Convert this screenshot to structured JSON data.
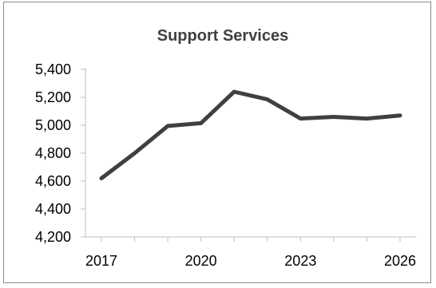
{
  "chart_data": {
    "type": "line",
    "title": "Support Services",
    "xlabel": "",
    "ylabel": "",
    "x": [
      2017,
      2018,
      2019,
      2020,
      2021,
      2022,
      2023,
      2024,
      2025,
      2026
    ],
    "x_tick_labels": [
      "2017",
      "2020",
      "2023",
      "2026"
    ],
    "y_tick_labels": [
      "4,200",
      "4,400",
      "4,600",
      "4,800",
      "5,000",
      "5,200",
      "5,400"
    ],
    "ylim": [
      4200,
      5400
    ],
    "series": [
      {
        "values": [
          4620,
          4800,
          4995,
          5015,
          5240,
          5185,
          5048,
          5060,
          5048,
          5070
        ]
      }
    ],
    "grid": false,
    "legend": "none",
    "line_color": "#404040",
    "axis_color": "#bfbfbf"
  }
}
